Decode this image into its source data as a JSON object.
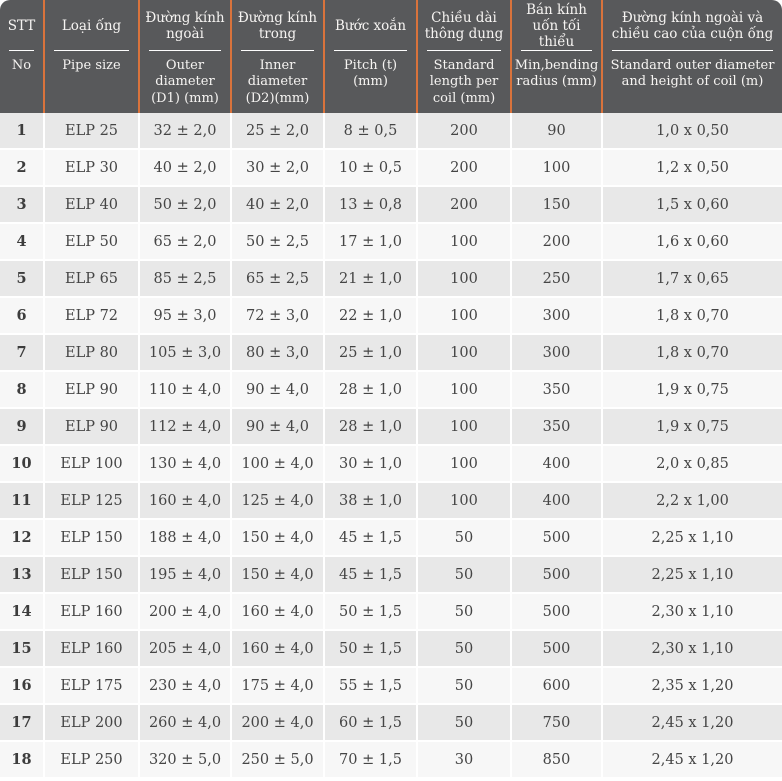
{
  "colors": {
    "header_bg": "#58595b",
    "accent_orange": "#d9733c",
    "header_text": "#f6f4f2",
    "row_odd": "#e8e8e8",
    "row_even": "#f7f7f7",
    "body_text": "#454545"
  },
  "table": {
    "columns": [
      {
        "id": "stt",
        "vn": "STT",
        "en": "No"
      },
      {
        "id": "pipe",
        "vn": "Loại ống",
        "en": "Pipe size"
      },
      {
        "id": "outer",
        "vn": "Đường kính ngoài",
        "en": "Outer diameter (D1) (mm)"
      },
      {
        "id": "inner",
        "vn": "Đường kính trong",
        "en": "Inner diameter (D2)(mm)"
      },
      {
        "id": "pitch",
        "vn": "Bước xoắn",
        "en": "Pitch (t)(mm)"
      },
      {
        "id": "length",
        "vn": "Chiều dài thông dụng",
        "en": "Standard length per coil (mm)"
      },
      {
        "id": "radius",
        "vn": "Bán kính uốn tối thiểu",
        "en": "Min,bending radius (mm)"
      },
      {
        "id": "coil",
        "vn": "Đường kính ngoài và chiều cao của cuộn ống",
        "en": "Standard outer diameter and height of coil (m)"
      }
    ],
    "rows": [
      [
        "1",
        "ELP 25",
        "32 ± 2,0",
        "25 ± 2,0",
        "8 ± 0,5",
        "200",
        "90",
        "1,0 x 0,50"
      ],
      [
        "2",
        "ELP 30",
        "40 ± 2,0",
        "30 ± 2,0",
        "10 ± 0,5",
        "200",
        "100",
        "1,2 x 0,50"
      ],
      [
        "3",
        "ELP 40",
        "50 ± 2,0",
        "40 ± 2,0",
        "13 ± 0,8",
        "200",
        "150",
        "1,5 x 0,60"
      ],
      [
        "4",
        "ELP 50",
        "65 ± 2,0",
        "50 ± 2,5",
        "17 ± 1,0",
        "100",
        "200",
        "1,6 x 0,60"
      ],
      [
        "5",
        "ELP 65",
        "85 ± 2,5",
        "65 ± 2,5",
        "21 ± 1,0",
        "100",
        "250",
        "1,7 x 0,65"
      ],
      [
        "6",
        "ELP 72",
        "95 ± 3,0",
        "72 ± 3,0",
        "22 ± 1,0",
        "100",
        "300",
        "1,8 x 0,70"
      ],
      [
        "7",
        "ELP 80",
        "105 ± 3,0",
        "80 ± 3,0",
        "25 ± 1,0",
        "100",
        "300",
        "1,8 x 0,70"
      ],
      [
        "8",
        "ELP 90",
        "110 ± 4,0",
        "90 ± 4,0",
        "28 ± 1,0",
        "100",
        "350",
        "1,9 x 0,75"
      ],
      [
        "9",
        "ELP 90",
        "112 ± 4,0",
        "90 ± 4,0",
        "28 ± 1,0",
        "100",
        "350",
        "1,9 x 0,75"
      ],
      [
        "10",
        "ELP 100",
        "130 ± 4,0",
        "100 ± 4,0",
        "30 ± 1,0",
        "100",
        "400",
        "2,0 x 0,85"
      ],
      [
        "11",
        "ELP 125",
        "160 ± 4,0",
        "125 ± 4,0",
        "38 ± 1,0",
        "100",
        "400",
        "2,2 x 1,00"
      ],
      [
        "12",
        "ELP 150",
        "188 ± 4,0",
        "150 ± 4,0",
        "45 ± 1,5",
        "50",
        "500",
        "2,25 x 1,10"
      ],
      [
        "13",
        "ELP 150",
        "195 ± 4,0",
        "150 ± 4,0",
        "45 ± 1,5",
        "50",
        "500",
        "2,25 x 1,10"
      ],
      [
        "14",
        "ELP 160",
        "200 ± 4,0",
        "160 ± 4,0",
        "50 ± 1,5",
        "50",
        "500",
        "2,30 x 1,10"
      ],
      [
        "15",
        "ELP 160",
        "205 ± 4,0",
        "160 ± 4,0",
        "50 ± 1,5",
        "50",
        "500",
        "2,30 x 1,10"
      ],
      [
        "16",
        "ELP 175",
        "230 ± 4,0",
        "175 ± 4,0",
        "55 ± 1,5",
        "50",
        "600",
        "2,35 x 1,20"
      ],
      [
        "17",
        "ELP 200",
        "260 ± 4,0",
        "200 ± 4,0",
        "60 ± 1,5",
        "50",
        "750",
        "2,45 x 1,20"
      ],
      [
        "18",
        "ELP 250",
        "320 ± 5,0",
        "250 ± 5,0",
        "70 ± 1,5",
        "30",
        "850",
        "2,45 x 1,20"
      ]
    ]
  }
}
